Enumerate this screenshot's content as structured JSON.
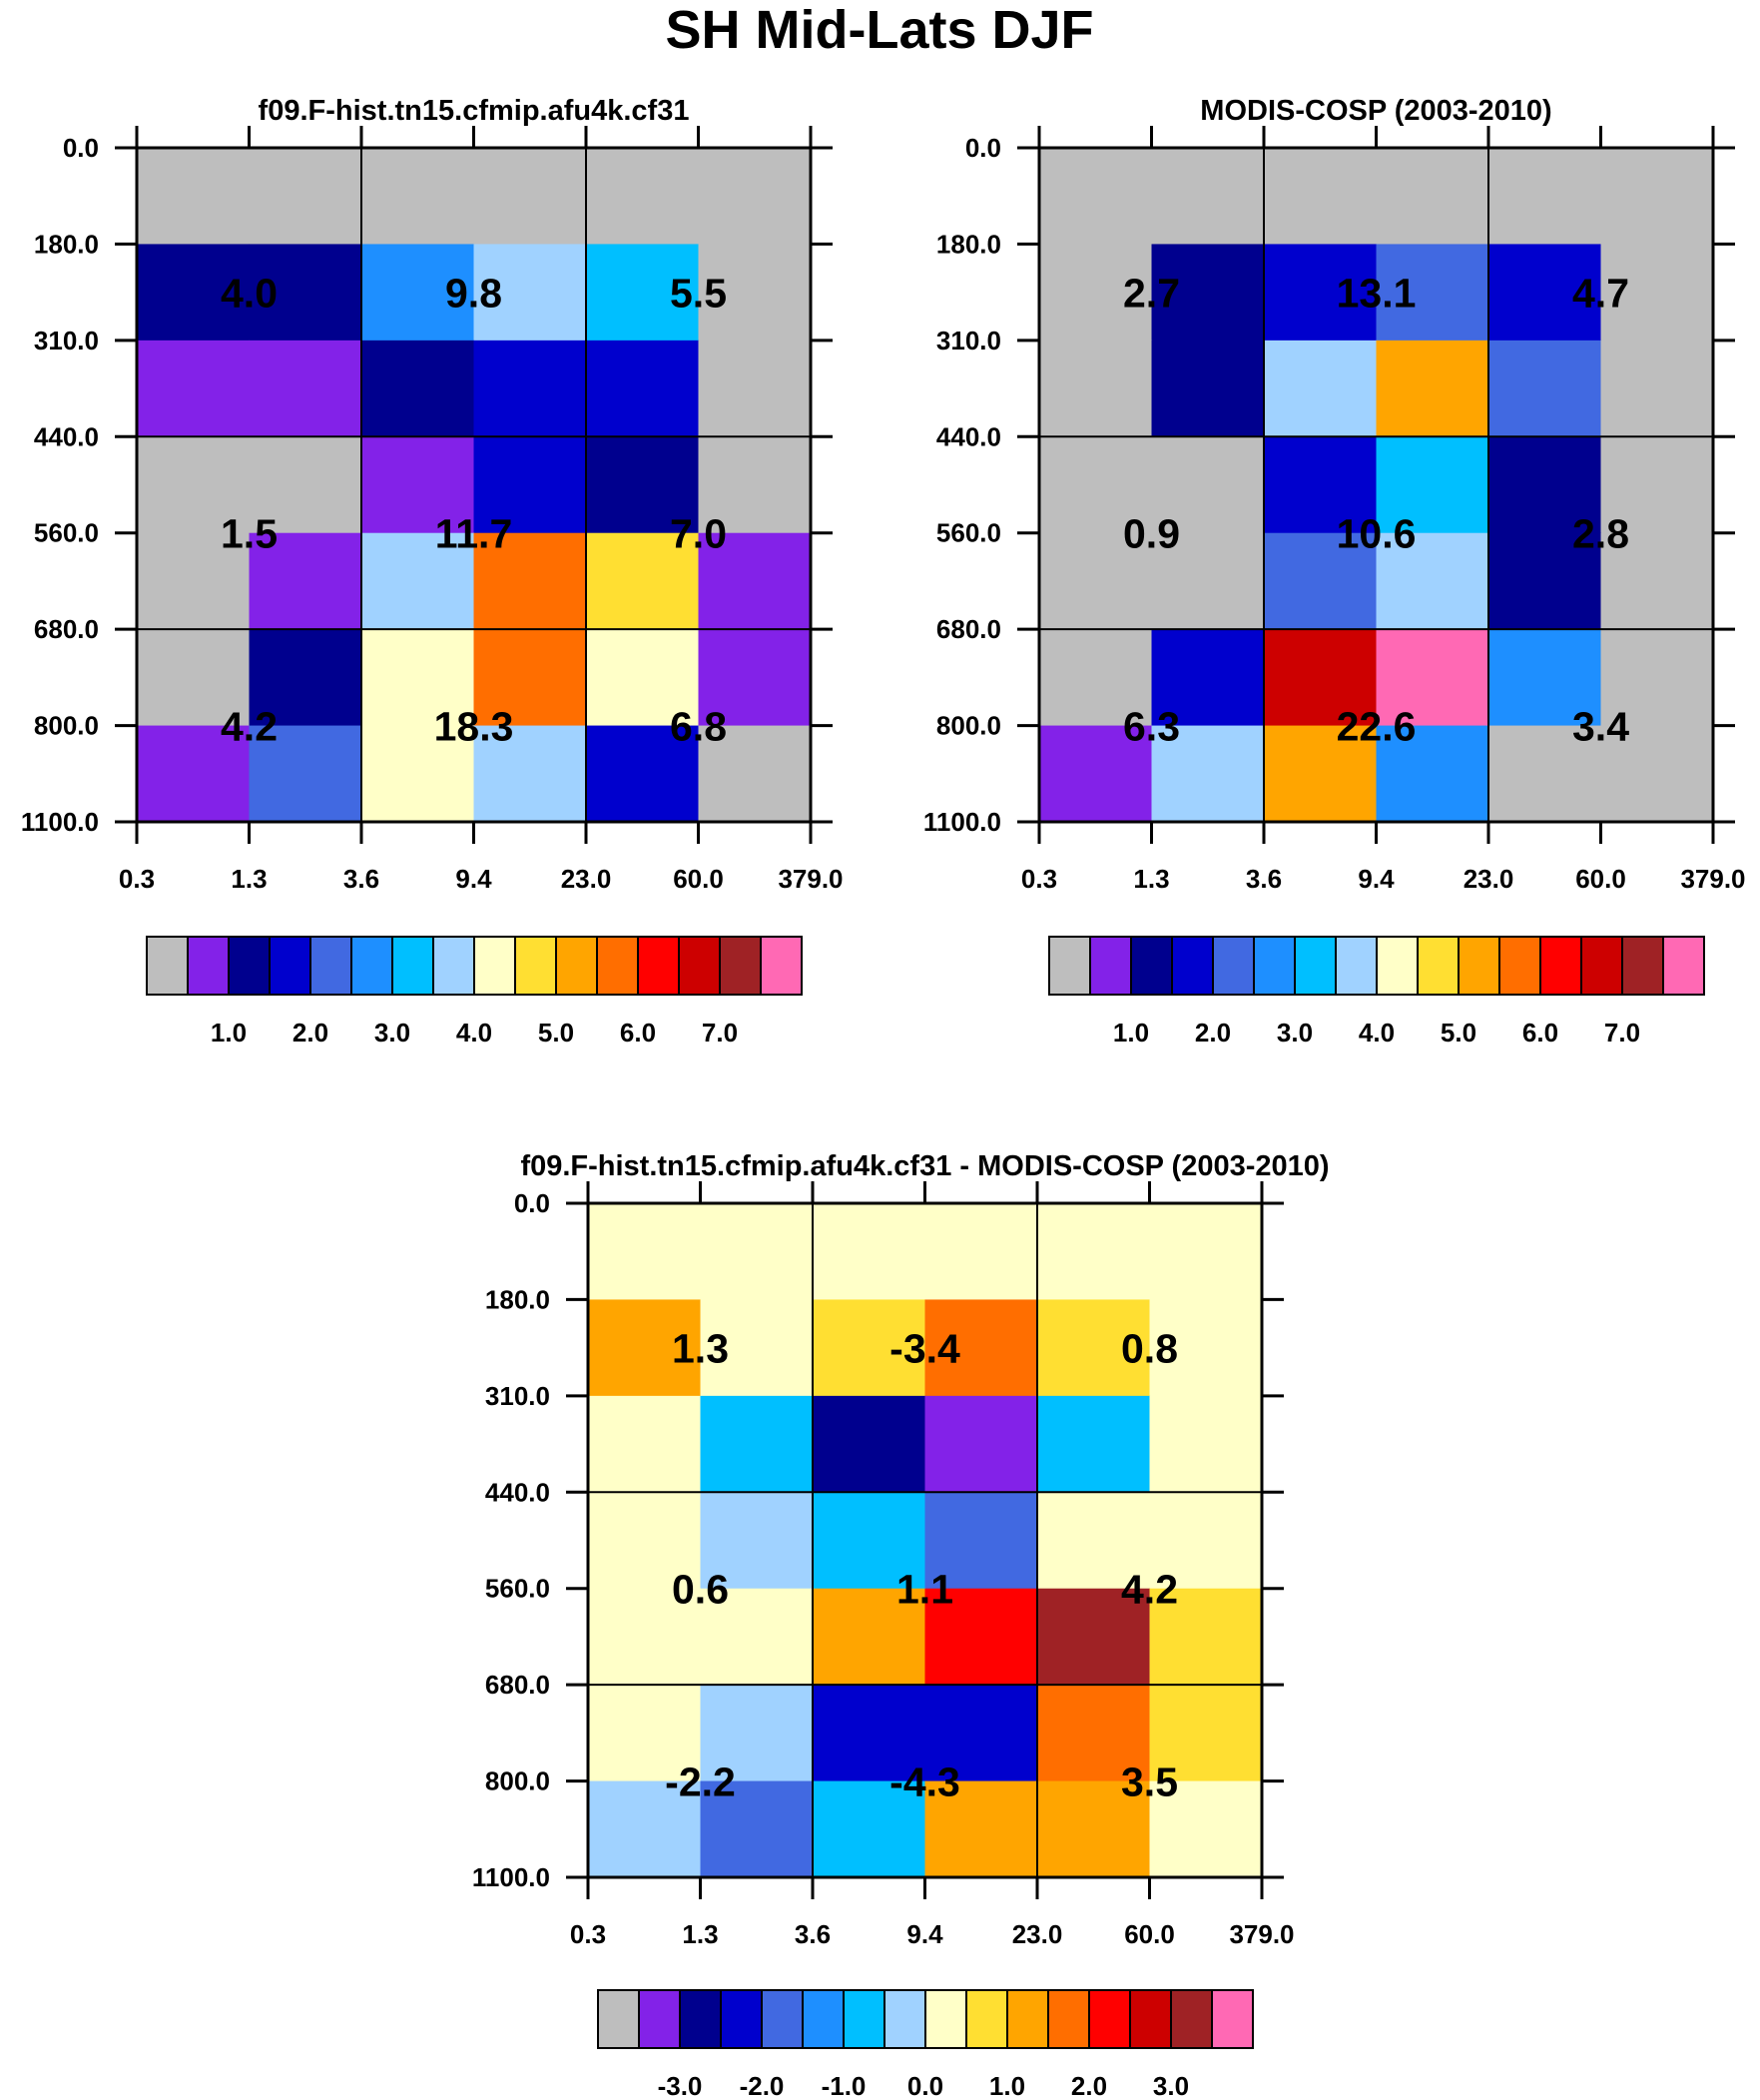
{
  "figure_title": "SH Mid-Lats DJF",
  "colors": {
    "missing": "#bebebe",
    "cell_border": "#000000"
  },
  "chart_data": [
    {
      "type": "heatmap",
      "id": "model",
      "title": "f09.F-hist.tn15.cfmip.afu4k.cf31",
      "xlabel": "",
      "ylabel": "",
      "x_ticks": [
        "0.3",
        "1.3",
        "3.6",
        "9.4",
        "23.0",
        "60.0",
        "379.0"
      ],
      "y_ticks": [
        "0.0",
        "180.0",
        "310.0",
        "440.0",
        "560.0",
        "680.0",
        "800.0",
        "1100.0"
      ],
      "rows": 7,
      "cols": 6,
      "cell_color_index": [
        [
          0,
          0,
          0,
          0,
          0,
          0
        ],
        [
          2,
          2,
          5,
          7,
          6,
          0
        ],
        [
          1,
          1,
          2,
          3,
          3,
          0
        ],
        [
          0,
          0,
          1,
          3,
          2,
          0
        ],
        [
          0,
          1,
          7,
          11,
          9,
          1
        ],
        [
          0,
          2,
          8,
          11,
          8,
          1
        ],
        [
          1,
          4,
          8,
          7,
          3,
          0
        ]
      ],
      "group_values": [
        [
          "4.0",
          "9.8",
          "5.5"
        ],
        [
          "1.5",
          "11.7",
          "7.0"
        ],
        [
          "4.2",
          "18.3",
          "6.8"
        ]
      ],
      "colorbar": {
        "colors": [
          "#bebebe",
          "#8322e8",
          "#00008e",
          "#0000cd",
          "#4169e1",
          "#1e8fff",
          "#00bfff",
          "#a0d2ff",
          "#ffffc8",
          "#ffdf32",
          "#ffa500",
          "#ff6e00",
          "#ff0000",
          "#cd0000",
          "#9f2225",
          "#ff69b4"
        ],
        "labels": [
          "1.0",
          "2.0",
          "3.0",
          "4.0",
          "5.0",
          "6.0",
          "7.0"
        ]
      }
    },
    {
      "type": "heatmap",
      "id": "obs",
      "title": "MODIS-COSP (2003-2010)",
      "xlabel": "",
      "ylabel": "",
      "x_ticks": [
        "0.3",
        "1.3",
        "3.6",
        "9.4",
        "23.0",
        "60.0",
        "379.0"
      ],
      "y_ticks": [
        "0.0",
        "180.0",
        "310.0",
        "440.0",
        "560.0",
        "680.0",
        "800.0",
        "1100.0"
      ],
      "rows": 7,
      "cols": 6,
      "cell_color_index": [
        [
          0,
          0,
          0,
          0,
          0,
          0
        ],
        [
          0,
          2,
          3,
          4,
          3,
          0
        ],
        [
          0,
          2,
          7,
          10,
          4,
          0
        ],
        [
          0,
          0,
          3,
          6,
          2,
          0
        ],
        [
          0,
          0,
          4,
          7,
          2,
          0
        ],
        [
          0,
          3,
          13,
          15,
          5,
          0
        ],
        [
          1,
          7,
          10,
          5,
          0,
          0
        ]
      ],
      "group_values": [
        [
          "2.7",
          "13.1",
          "4.7"
        ],
        [
          "0.9",
          "10.6",
          "2.8"
        ],
        [
          "6.3",
          "22.6",
          "3.4"
        ]
      ],
      "colorbar": {
        "colors": [
          "#bebebe",
          "#8322e8",
          "#00008e",
          "#0000cd",
          "#4169e1",
          "#1e8fff",
          "#00bfff",
          "#a0d2ff",
          "#ffffc8",
          "#ffdf32",
          "#ffa500",
          "#ff6e00",
          "#ff0000",
          "#cd0000",
          "#9f2225",
          "#ff69b4"
        ],
        "labels": [
          "1.0",
          "2.0",
          "3.0",
          "4.0",
          "5.0",
          "6.0",
          "7.0"
        ]
      }
    },
    {
      "type": "heatmap",
      "id": "diff",
      "title": "f09.F-hist.tn15.cfmip.afu4k.cf31 - MODIS-COSP (2003-2010)",
      "xlabel": "",
      "ylabel": "",
      "x_ticks": [
        "0.3",
        "1.3",
        "3.6",
        "9.4",
        "23.0",
        "60.0",
        "379.0"
      ],
      "y_ticks": [
        "0.0",
        "180.0",
        "310.0",
        "440.0",
        "560.0",
        "680.0",
        "800.0",
        "1100.0"
      ],
      "rows": 7,
      "cols": 6,
      "cell_color_index": [
        [
          8,
          8,
          8,
          8,
          8,
          8
        ],
        [
          10,
          8,
          9,
          11,
          9,
          8
        ],
        [
          8,
          6,
          2,
          1,
          6,
          8
        ],
        [
          8,
          7,
          6,
          4,
          8,
          8
        ],
        [
          8,
          8,
          10,
          12,
          14,
          9
        ],
        [
          8,
          7,
          3,
          3,
          11,
          9
        ],
        [
          7,
          4,
          6,
          10,
          10,
          8
        ]
      ],
      "group_values": [
        [
          "1.3",
          "-3.4",
          "0.8"
        ],
        [
          "0.6",
          "1.1",
          "4.2"
        ],
        [
          "-2.2",
          "-4.3",
          "3.5"
        ]
      ],
      "colorbar": {
        "colors": [
          "#bebebe",
          "#8322e8",
          "#00008e",
          "#0000cd",
          "#4169e1",
          "#1e8fff",
          "#00bfff",
          "#a0d2ff",
          "#ffffc8",
          "#ffdf32",
          "#ffa500",
          "#ff6e00",
          "#ff0000",
          "#cd0000",
          "#9f2225",
          "#ff69b4"
        ],
        "labels": [
          "-3.0",
          "-2.0",
          "-1.0",
          "0.0",
          "1.0",
          "2.0",
          "3.0"
        ]
      }
    }
  ]
}
